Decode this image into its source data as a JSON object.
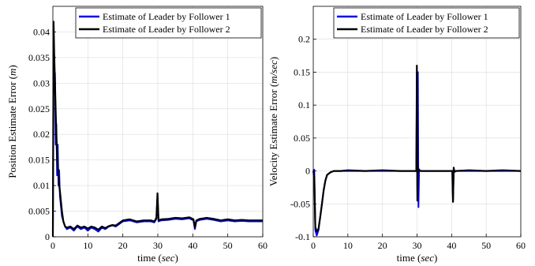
{
  "chart_data": [
    {
      "type": "line",
      "ylabel": "Position Estimate Error (m)",
      "ylabel_plain": "Position Estimate Error ",
      "ylabel_var": "m",
      "xlabel_plain": "time ",
      "xlabel_var": "sec",
      "xlim": [
        0,
        60
      ],
      "ylim": [
        0,
        0.045
      ],
      "xticks": [
        0,
        10,
        20,
        30,
        40,
        50,
        60
      ],
      "xtick_labels": [
        "0",
        "10",
        "20",
        "30",
        "40",
        "50",
        "60"
      ],
      "yticks": [
        0,
        0.005,
        0.01,
        0.015,
        0.02,
        0.025,
        0.03,
        0.035,
        0.04
      ],
      "ytick_labels": [
        "0",
        "0.005",
        "0.01",
        "0.015",
        "0.02",
        "0.025",
        "0.03",
        "0.035",
        "0.04"
      ],
      "grid": true,
      "legend_position": "top-right",
      "series": [
        {
          "name": "Estimate of Leader by Follower 1",
          "color": "#0000ff",
          "x": [
            0,
            0.2,
            0.4,
            0.6,
            0.8,
            1.0,
            1.2,
            1.4,
            1.6,
            1.8,
            2.0,
            2.3,
            2.6,
            3.0,
            3.5,
            4,
            5,
            6,
            7,
            8,
            9,
            10,
            11,
            12,
            13,
            14,
            15,
            16,
            17,
            18,
            19,
            20,
            22,
            24,
            26,
            28,
            29,
            29.6,
            29.9,
            30.2,
            31,
            33,
            35,
            37,
            39,
            40.2,
            40.6,
            41,
            42,
            44,
            46,
            48,
            50,
            52,
            54,
            56,
            58,
            60
          ],
          "y": [
            0,
            0.033,
            0.028,
            0.032,
            0.018,
            0.022,
            0.012,
            0.018,
            0.01,
            0.013,
            0.008,
            0.006,
            0.004,
            0.003,
            0.002,
            0.0015,
            0.0018,
            0.0012,
            0.002,
            0.0015,
            0.0018,
            0.0012,
            0.0018,
            0.0015,
            0.001,
            0.0018,
            0.0015,
            0.002,
            0.0022,
            0.002,
            0.0025,
            0.003,
            0.0032,
            0.0028,
            0.003,
            0.003,
            0.0028,
            0.0035,
            0.008,
            0.003,
            0.0032,
            0.0033,
            0.0035,
            0.0034,
            0.0036,
            0.0032,
            0.0015,
            0.003,
            0.0033,
            0.0035,
            0.0033,
            0.003,
            0.0032,
            0.003,
            0.0031,
            0.003,
            0.003,
            0.003
          ]
        },
        {
          "name": "Estimate of Leader by Follower 2",
          "color": "#000000",
          "x": [
            0,
            0.2,
            0.4,
            0.6,
            0.8,
            1.0,
            1.2,
            1.4,
            1.6,
            1.8,
            2.0,
            2.3,
            2.6,
            3.0,
            3.5,
            4,
            5,
            6,
            7,
            8,
            9,
            10,
            11,
            12,
            13,
            14,
            15,
            16,
            17,
            18,
            19,
            20,
            22,
            24,
            26,
            28,
            29,
            29.6,
            29.9,
            30.2,
            31,
            33,
            35,
            37,
            39,
            40.2,
            40.6,
            41,
            42,
            44,
            46,
            48,
            50,
            52,
            54,
            56,
            58,
            60
          ],
          "y": [
            0,
            0.042,
            0.035,
            0.03,
            0.025,
            0.02,
            0.016,
            0.014,
            0.012,
            0.01,
            0.009,
            0.007,
            0.005,
            0.003,
            0.002,
            0.0018,
            0.002,
            0.0015,
            0.0022,
            0.0018,
            0.002,
            0.0016,
            0.002,
            0.0018,
            0.0014,
            0.002,
            0.0017,
            0.0021,
            0.0023,
            0.0022,
            0.0027,
            0.0032,
            0.0034,
            0.003,
            0.0032,
            0.0032,
            0.003,
            0.0037,
            0.0085,
            0.0032,
            0.0034,
            0.0035,
            0.0037,
            0.0036,
            0.0038,
            0.0034,
            0.0018,
            0.0032,
            0.0035,
            0.0037,
            0.0035,
            0.0032,
            0.0034,
            0.0032,
            0.0033,
            0.0032,
            0.0032,
            0.0032
          ]
        }
      ]
    },
    {
      "type": "line",
      "ylabel": "Velocity Estimate Error (m/sec)",
      "ylabel_plain": "Velocity Estimate Error ",
      "ylabel_var": "m/sec",
      "xlabel_plain": "time ",
      "xlabel_var": "sec",
      "xlim": [
        0,
        60
      ],
      "ylim": [
        -0.1,
        0.25
      ],
      "xticks": [
        0,
        10,
        20,
        30,
        40,
        50,
        60
      ],
      "xtick_labels": [
        "0",
        "10",
        "20",
        "30",
        "40",
        "50",
        "60"
      ],
      "yticks": [
        -0.1,
        -0.05,
        0,
        0.05,
        0.1,
        0.15,
        0.2
      ],
      "ytick_labels": [
        "-0.1",
        "-0.05",
        "0",
        "0.05",
        "0.1",
        "0.15",
        "0.2"
      ],
      "grid": true,
      "legend_position": "top-right",
      "series": [
        {
          "name": "Estimate of Leader by Follower 1",
          "color": "#0000ff",
          "x": [
            0,
            0.3,
            0.6,
            1.0,
            1.5,
            2.0,
            2.5,
            3.0,
            3.5,
            4,
            5,
            6,
            8,
            10,
            15,
            20,
            25,
            29.8,
            29.95,
            30.1,
            30.25,
            30.4,
            30.6,
            31,
            35,
            40.2,
            40.4,
            40.6,
            40.8,
            41.2,
            45,
            50,
            55,
            60
          ],
          "y": [
            0,
            0.002,
            -0.09,
            -0.098,
            -0.09,
            -0.07,
            -0.05,
            -0.03,
            -0.015,
            -0.006,
            -0.002,
            0,
            0,
            0,
            0,
            0,
            0,
            0,
            0.15,
            -0.03,
            0.15,
            -0.055,
            0.001,
            0,
            0,
            0,
            -0.045,
            0.003,
            -0.002,
            0,
            0,
            0,
            0,
            0
          ]
        },
        {
          "name": "Estimate of Leader by Follower 2",
          "color": "#000000",
          "x": [
            0,
            0.3,
            0.6,
            1.0,
            1.5,
            2.0,
            2.5,
            3.0,
            3.5,
            4,
            5,
            6,
            8,
            10,
            15,
            20,
            25,
            29.8,
            29.95,
            30.1,
            30.25,
            30.4,
            30.6,
            31,
            35,
            40.2,
            40.4,
            40.6,
            40.8,
            41.2,
            45,
            50,
            55,
            60
          ],
          "y": [
            0,
            -0.01,
            -0.085,
            -0.092,
            -0.088,
            -0.07,
            -0.05,
            -0.03,
            -0.015,
            -0.006,
            -0.002,
            0,
            0,
            0.001,
            0,
            0.001,
            0,
            0,
            0.16,
            -0.045,
            0.005,
            0.003,
            0.002,
            0,
            0,
            0,
            -0.047,
            0.005,
            -0.001,
            0,
            0.001,
            0,
            0.001,
            0
          ]
        }
      ]
    }
  ]
}
